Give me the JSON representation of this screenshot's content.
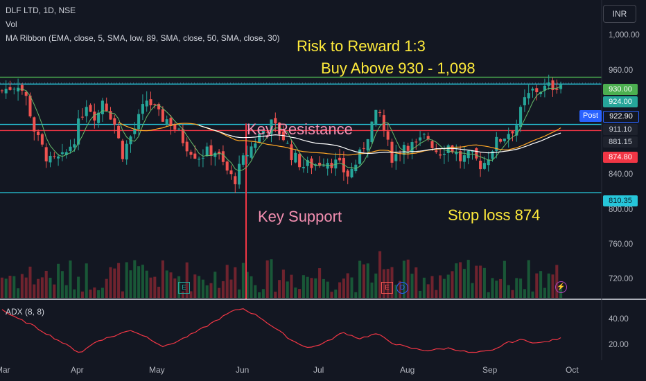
{
  "legend": {
    "symbol_line": "DLF LTD, 1D, NSE",
    "vol": "Vol",
    "ma_ribbon": "MA Ribbon (EMA, close, 5, SMA, low, 89, SMA, close, 50, SMA, close, 30)",
    "adx": "ADX (8, 8)"
  },
  "currency": "INR",
  "annotations": {
    "risk_reward": "Risk to Reward 1:3",
    "buy_above": "Buy Above 930 - 1,098",
    "key_resistance": "Key Resistance",
    "key_support": "Key Support",
    "stop_loss": "Stop loss 874"
  },
  "price_scale": {
    "ticks": [
      "1,000.00",
      "960.00",
      "840.00",
      "800.00",
      "760.00",
      "720.00"
    ],
    "labels": {
      "green_line": "930.00",
      "last_close": "924.00",
      "post": "Post",
      "post_price": "922.90",
      "ma1": "911.10",
      "ma2": "881.15",
      "red_line": "874.80",
      "support": "810.35"
    }
  },
  "adx_scale": {
    "ticks": [
      "40.00",
      "20.00"
    ]
  },
  "time_axis": [
    "Mar",
    "Apr",
    "May",
    "Jun",
    "Jul",
    "Aug",
    "Sep",
    "Oct"
  ],
  "events": [
    {
      "type": "earnings",
      "label": "E"
    },
    {
      "type": "earnings",
      "label": "E"
    },
    {
      "type": "dividend",
      "label": "D"
    },
    {
      "type": "split",
      "label": "⚡"
    }
  ],
  "colors": {
    "background": "#131722",
    "up": "#26a69a",
    "down": "#ef5350",
    "cyan_line": "#26c6da",
    "green_line": "#4caf50",
    "red_line": "#f23645",
    "annotation_yellow": "#ffeb3b",
    "annotation_pink": "#f48fb1",
    "ema5": "#66bb6a",
    "sma30": "#ffa726",
    "sma50": "#ffffff",
    "adx": "#f23645"
  },
  "chart_data": {
    "type": "candlestick",
    "ylim": [
      700,
      1010
    ],
    "horizontal_levels": [
      {
        "value": 930,
        "color": "green"
      },
      {
        "value": 922.9,
        "color": "cyan"
      },
      {
        "value": 881.15,
        "color": "cyan"
      },
      {
        "value": 874.8,
        "color": "red"
      },
      {
        "value": 810.35,
        "color": "cyan"
      }
    ],
    "price_path": [
      [
        0.0,
        916
      ],
      [
        0.03,
        924
      ],
      [
        0.045,
        906
      ],
      [
        0.06,
        870
      ],
      [
        0.085,
        842
      ],
      [
        0.11,
        846
      ],
      [
        0.13,
        868
      ],
      [
        0.15,
        905
      ],
      [
        0.17,
        888
      ],
      [
        0.18,
        908
      ],
      [
        0.2,
        885
      ],
      [
        0.215,
        850
      ],
      [
        0.24,
        880
      ],
      [
        0.26,
        908
      ],
      [
        0.28,
        890
      ],
      [
        0.3,
        885
      ],
      [
        0.33,
        860
      ],
      [
        0.35,
        848
      ],
      [
        0.38,
        855
      ],
      [
        0.4,
        835
      ],
      [
        0.415,
        822
      ],
      [
        0.435,
        848
      ],
      [
        0.46,
        870
      ],
      [
        0.48,
        882
      ],
      [
        0.5,
        872
      ],
      [
        0.52,
        848
      ],
      [
        0.54,
        838
      ],
      [
        0.56,
        840
      ],
      [
        0.58,
        845
      ],
      [
        0.6,
        840
      ],
      [
        0.62,
        828
      ],
      [
        0.64,
        848
      ],
      [
        0.66,
        880
      ],
      [
        0.675,
        895
      ],
      [
        0.69,
        860
      ],
      [
        0.7,
        845
      ],
      [
        0.72,
        862
      ],
      [
        0.74,
        858
      ],
      [
        0.76,
        870
      ],
      [
        0.78,
        852
      ],
      [
        0.8,
        860
      ],
      [
        0.82,
        845
      ],
      [
        0.84,
        848
      ],
      [
        0.86,
        838
      ],
      [
        0.88,
        860
      ],
      [
        0.9,
        870
      ],
      [
        0.92,
        880
      ],
      [
        0.935,
        905
      ],
      [
        0.95,
        916
      ],
      [
        0.97,
        918
      ],
      [
        1.0,
        924
      ]
    ],
    "adx_path": [
      [
        0.0,
        50
      ],
      [
        0.02,
        44
      ],
      [
        0.05,
        38
      ],
      [
        0.08,
        30
      ],
      [
        0.11,
        22
      ],
      [
        0.14,
        14
      ],
      [
        0.17,
        24
      ],
      [
        0.2,
        28
      ],
      [
        0.23,
        33
      ],
      [
        0.26,
        27
      ],
      [
        0.29,
        19
      ],
      [
        0.32,
        25
      ],
      [
        0.35,
        32
      ],
      [
        0.38,
        40
      ],
      [
        0.41,
        48
      ],
      [
        0.43,
        51
      ],
      [
        0.46,
        44
      ],
      [
        0.49,
        34
      ],
      [
        0.52,
        24
      ],
      [
        0.55,
        18
      ],
      [
        0.58,
        23
      ],
      [
        0.61,
        31
      ],
      [
        0.64,
        26
      ],
      [
        0.67,
        30
      ],
      [
        0.7,
        22
      ],
      [
        0.73,
        18
      ],
      [
        0.76,
        16
      ],
      [
        0.8,
        18
      ],
      [
        0.84,
        14
      ],
      [
        0.88,
        16
      ],
      [
        0.9,
        22
      ],
      [
        0.93,
        25
      ],
      [
        0.96,
        22
      ],
      [
        1.0,
        26
      ]
    ],
    "adx_ylim": [
      8,
      55
    ]
  }
}
